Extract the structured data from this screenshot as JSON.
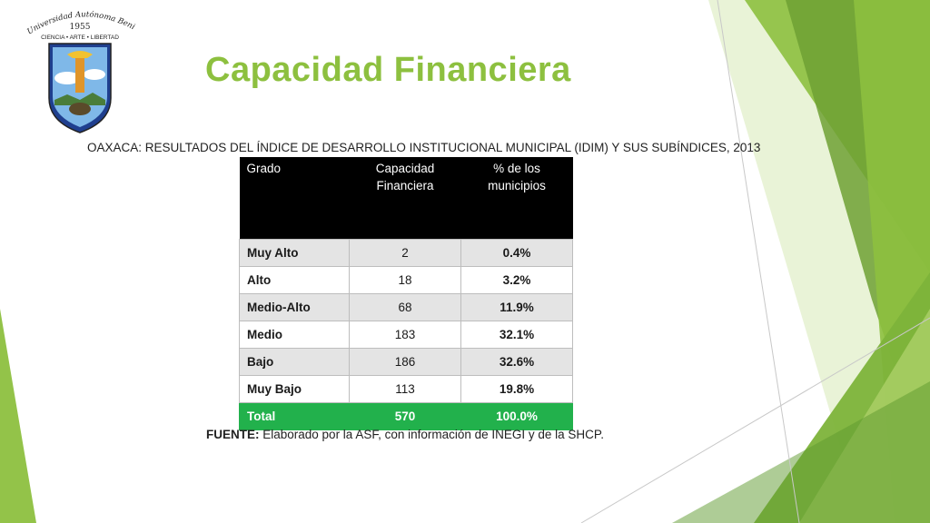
{
  "slide": {
    "title": "Capacidad Financiera",
    "subtitle": "OAXACA: RESULTADOS DEL ÍNDICE DE DESARROLLO INSTITUCIONAL MUNICIPAL (IDIM) Y SUS SUBÍNDICES, 2013",
    "source_label": "FUENTE:",
    "source_text": " Elaborado por la ASF, con información de INEGI y de la SHCP."
  },
  "logo": {
    "arc_text": "Universidad Autónoma Benito Juárez de Oaxaca",
    "year": "1955",
    "motto": "CIENCIA • ARTE • LIBERTAD"
  },
  "table": {
    "headers": [
      "Grado",
      "Capacidad Financiera",
      "% de los municipios"
    ],
    "rows": [
      [
        "Muy Alto",
        "2",
        "0.4%"
      ],
      [
        "Alto",
        "18",
        "3.2%"
      ],
      [
        "Medio-Alto",
        "68",
        "11.9%"
      ],
      [
        "Medio",
        "183",
        "32.1%"
      ],
      [
        "Bajo",
        "186",
        "32.6%"
      ],
      [
        "Muy Bajo",
        "113",
        "19.8%"
      ]
    ],
    "total": [
      "Total",
      "570",
      "100.0%"
    ]
  },
  "colors": {
    "title": "#8dc03f",
    "total_row": "#22b14c",
    "header_bg": "#000000",
    "deco_greens": [
      "#8dc03f",
      "#6fa034",
      "#b5d67a",
      "#d7e9b6"
    ]
  }
}
